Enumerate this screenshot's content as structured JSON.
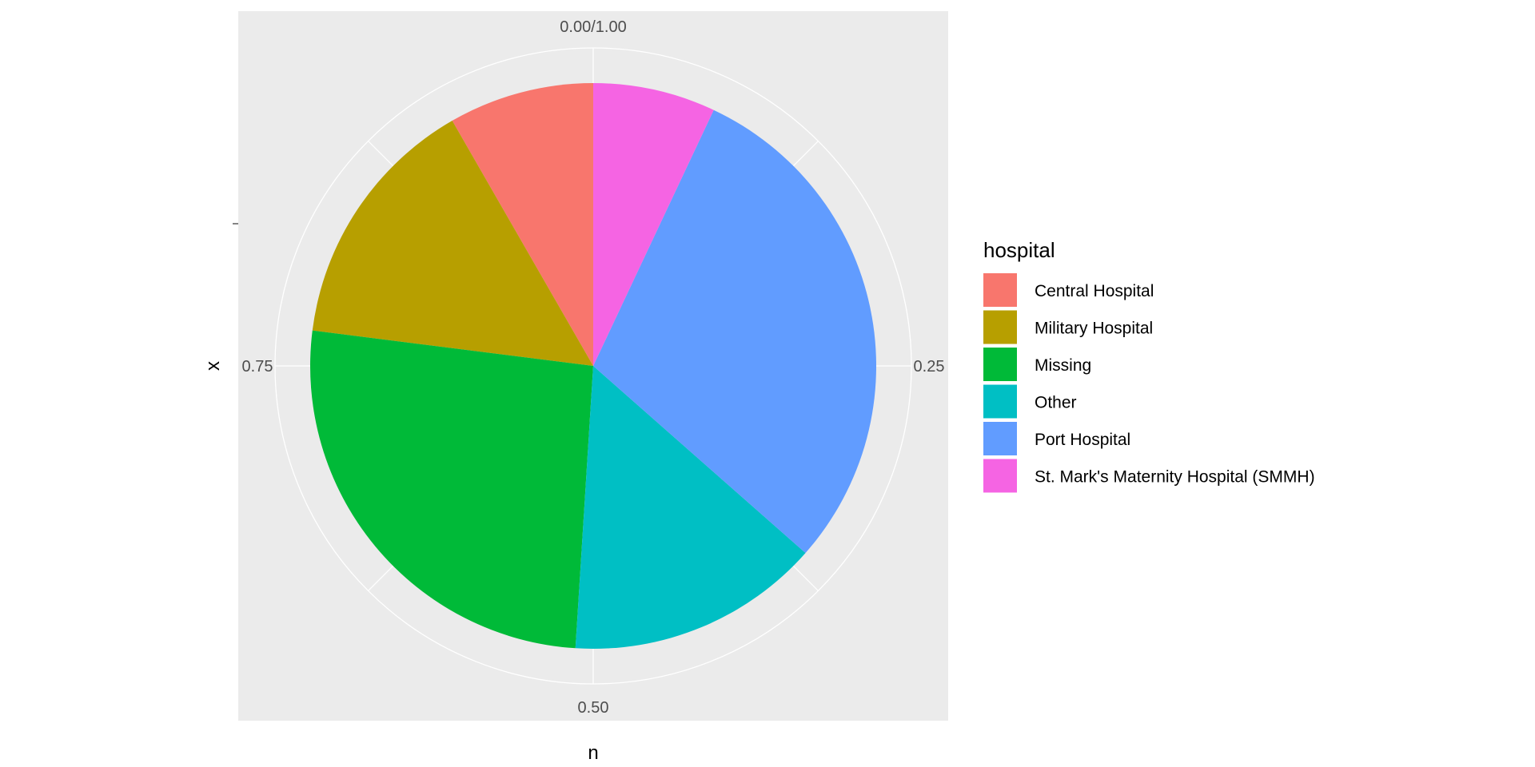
{
  "chart_data": {
    "type": "pie",
    "xlabel": "n",
    "ylabel": "x",
    "theta_ticks": [
      {
        "value": 0,
        "label": "0.00/1.00"
      },
      {
        "value": 0.25,
        "label": "0.25"
      },
      {
        "value": 0.5,
        "label": "0.50"
      },
      {
        "value": 0.75,
        "label": "0.75"
      }
    ],
    "legend": {
      "title": "hospital",
      "placement": "right"
    },
    "slices": [
      {
        "label": "Central Hospital",
        "value": 0.083,
        "color": "#F8766D"
      },
      {
        "label": "Military Hospital",
        "value": 0.147,
        "color": "#B79F00"
      },
      {
        "label": "Missing",
        "value": 0.26,
        "color": "#00BA38"
      },
      {
        "label": "Other",
        "value": 0.145,
        "color": "#00BFC4"
      },
      {
        "label": "Port Hospital",
        "value": 0.295,
        "color": "#619CFF"
      },
      {
        "label": "St. Mark's Maternity Hospital (SMMH)",
        "value": 0.07,
        "color": "#F564E3"
      }
    ],
    "panel_background": "#EBEBEB",
    "grid": true
  }
}
